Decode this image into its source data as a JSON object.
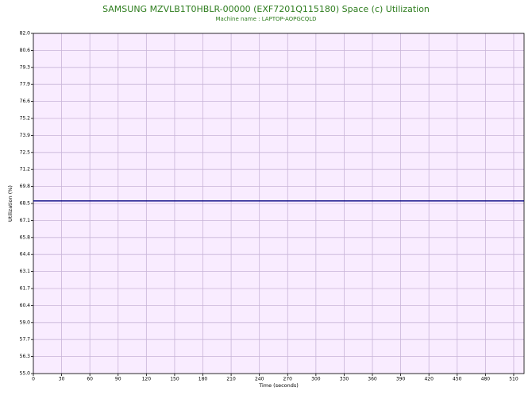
{
  "chart_data": {
    "type": "line",
    "title": "SAMSUNG MZVLB1T0HBLR-00000 (EXF7201Q115180) Space (c) Utilization",
    "subtitle": "Machine name : LAPTOP-AOPGCQLD",
    "x_label": "Time (seconds)",
    "y_label": "Utilization (%)",
    "xlim": [
      0,
      521
    ],
    "xticks": [
      0,
      30,
      60,
      90,
      120,
      150,
      180,
      210,
      240,
      270,
      300,
      330,
      360,
      390,
      420,
      450,
      480,
      510
    ],
    "ylim": [
      55,
      82
    ],
    "yticks": [
      {
        "value": 55,
        "label": "55.0"
      },
      {
        "value": 56.35,
        "label": "56.3"
      },
      {
        "value": 57.7,
        "label": "57.7"
      },
      {
        "value": 59.05,
        "label": "59.0"
      },
      {
        "value": 60.4,
        "label": "60.4"
      },
      {
        "value": 61.75,
        "label": "61.7"
      },
      {
        "value": 63.1,
        "label": "63.1"
      },
      {
        "value": 64.45,
        "label": "64.4"
      },
      {
        "value": 65.8,
        "label": "65.8"
      },
      {
        "value": 67.15,
        "label": "67.1"
      },
      {
        "value": 68.5,
        "label": "68.5"
      },
      {
        "value": 69.85,
        "label": "69.8"
      },
      {
        "value": 71.2,
        "label": "71.2"
      },
      {
        "value": 72.55,
        "label": "72.5"
      },
      {
        "value": 73.9,
        "label": "73.9"
      },
      {
        "value": 75.25,
        "label": "75.2"
      },
      {
        "value": 76.6,
        "label": "76.6"
      },
      {
        "value": 77.95,
        "label": "77.9"
      },
      {
        "value": 79.3,
        "label": "79.3"
      },
      {
        "value": 80.65,
        "label": "80.6"
      },
      {
        "value": 82,
        "label": "82.0"
      }
    ],
    "grid": true,
    "background": "#f9ecff",
    "grid_color": "#c8b4d8",
    "x": [
      0,
      521
    ],
    "series": [
      {
        "color": "#000080",
        "values": [
          68.7,
          68.7
        ]
      }
    ]
  }
}
